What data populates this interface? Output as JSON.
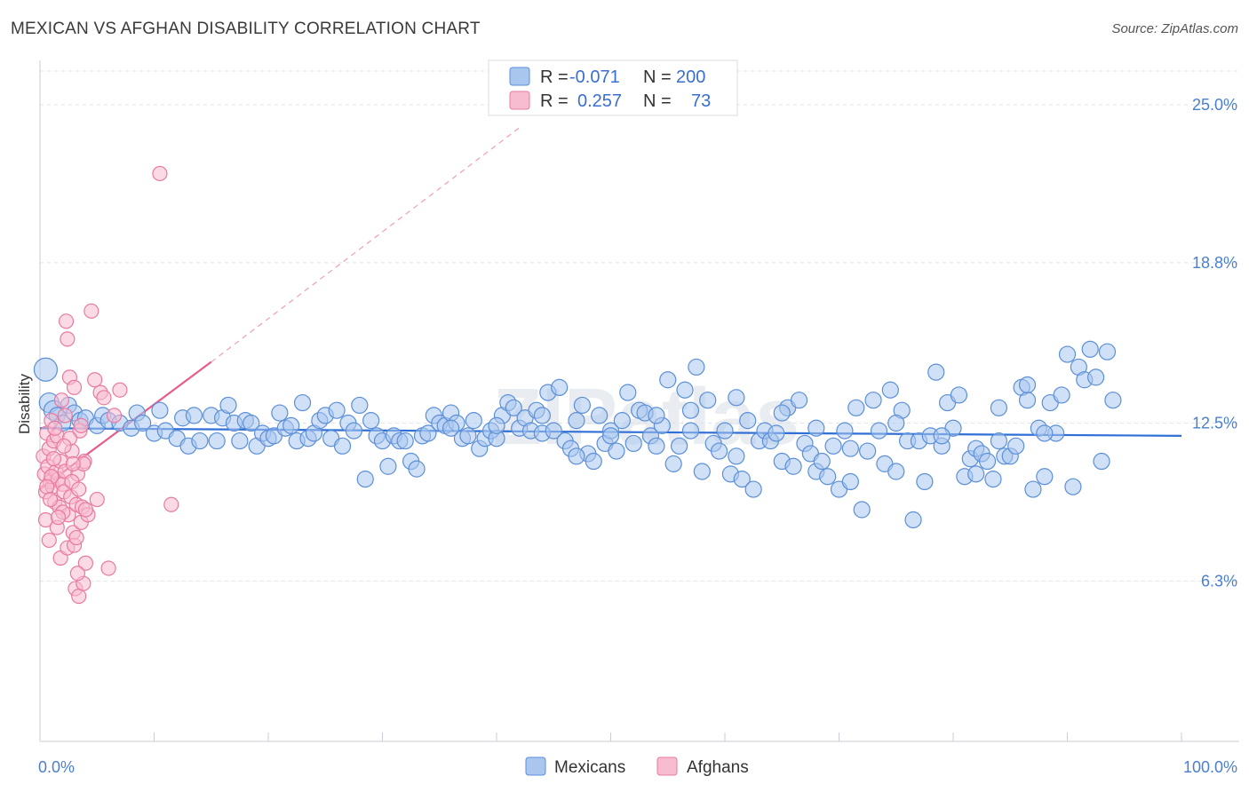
{
  "title": "MEXICAN VS AFGHAN DISABILITY CORRELATION CHART",
  "source": "Source: ZipAtlas.com",
  "watermark": "ZIPatlas",
  "colors": {
    "blue_fill": "#a9c6ef",
    "blue_stroke": "#5b8fd8",
    "blue_line": "#2f6fd6",
    "pink_fill": "#f7bcd0",
    "pink_stroke": "#e87aa0",
    "pink_line": "#e85c8c",
    "grid": "#dde3ec",
    "tick_text": "#4a7fd0"
  },
  "legend": {
    "rows": [
      {
        "r_label": "R =",
        "r_value": "-0.071",
        "n_label": "N =",
        "n_value": "200"
      },
      {
        "r_label": "R =",
        "r_value": "0.257",
        "n_label": "N =",
        "n_value": "73"
      }
    ]
  },
  "chart_data": {
    "type": "scatter",
    "xlabel": "",
    "ylabel": "Disability",
    "xlim": [
      0,
      100
    ],
    "ylim": [
      0,
      26.5
    ],
    "x_tick_labels": [
      "0.0%",
      "100.0%"
    ],
    "y_ticks": [
      6.3,
      12.5,
      18.8,
      25.0
    ],
    "y_tick_labels": [
      "6.3%",
      "12.5%",
      "18.8%",
      "25.0%"
    ],
    "grid": true,
    "legend_position": "top-center",
    "series": [
      {
        "name": "Mexicans",
        "trend": {
          "x0": 0,
          "y0": 12.3,
          "x1": 100,
          "y1": 12.0
        },
        "points": [
          [
            0.5,
            14.6
          ],
          [
            0.8,
            13.3
          ],
          [
            1.2,
            13.0
          ],
          [
            1.5,
            12.8
          ],
          [
            2.0,
            12.5
          ],
          [
            2.5,
            13.2
          ],
          [
            3.0,
            12.9
          ],
          [
            3.5,
            12.6
          ],
          [
            4.0,
            12.7
          ],
          [
            5.0,
            12.4
          ],
          [
            5.5,
            12.8
          ],
          [
            6.0,
            12.6
          ],
          [
            7.0,
            12.5
          ],
          [
            8.0,
            12.3
          ],
          [
            8.5,
            12.9
          ],
          [
            9.0,
            12.5
          ],
          [
            10.0,
            12.1
          ],
          [
            10.5,
            13.0
          ],
          [
            11.0,
            12.2
          ],
          [
            12.0,
            11.9
          ],
          [
            12.5,
            12.7
          ],
          [
            13.0,
            11.6
          ],
          [
            13.5,
            12.8
          ],
          [
            14.0,
            11.8
          ],
          [
            15.0,
            12.8
          ],
          [
            15.5,
            11.8
          ],
          [
            16.0,
            12.7
          ],
          [
            16.5,
            13.2
          ],
          [
            17.0,
            12.5
          ],
          [
            17.5,
            11.8
          ],
          [
            18.0,
            12.6
          ],
          [
            18.5,
            12.5
          ],
          [
            19.0,
            11.6
          ],
          [
            19.5,
            12.1
          ],
          [
            20.0,
            11.9
          ],
          [
            20.5,
            12.0
          ],
          [
            21.0,
            12.9
          ],
          [
            21.5,
            12.3
          ],
          [
            22.0,
            12.4
          ],
          [
            22.5,
            11.8
          ],
          [
            23.0,
            13.3
          ],
          [
            23.5,
            11.9
          ],
          [
            24.0,
            12.1
          ],
          [
            24.5,
            12.6
          ],
          [
            25.0,
            12.8
          ],
          [
            25.5,
            11.9
          ],
          [
            26.0,
            13.0
          ],
          [
            26.5,
            11.6
          ],
          [
            27.0,
            12.5
          ],
          [
            27.5,
            12.2
          ],
          [
            28.0,
            13.2
          ],
          [
            28.5,
            10.3
          ],
          [
            29.0,
            12.6
          ],
          [
            29.5,
            12.0
          ],
          [
            30.0,
            11.8
          ],
          [
            30.5,
            10.8
          ],
          [
            31.0,
            12.0
          ],
          [
            31.5,
            11.8
          ],
          [
            32.0,
            11.8
          ],
          [
            32.5,
            11.0
          ],
          [
            33.0,
            10.7
          ],
          [
            33.5,
            12.0
          ],
          [
            34.0,
            12.1
          ],
          [
            34.5,
            12.8
          ],
          [
            35.0,
            12.5
          ],
          [
            35.5,
            12.4
          ],
          [
            36.0,
            12.9
          ],
          [
            36.5,
            12.5
          ],
          [
            37.0,
            11.9
          ],
          [
            37.5,
            12.0
          ],
          [
            38.0,
            12.6
          ],
          [
            38.5,
            11.5
          ],
          [
            39.0,
            11.9
          ],
          [
            39.5,
            12.2
          ],
          [
            40.0,
            11.9
          ],
          [
            40.5,
            12.8
          ],
          [
            41.0,
            13.3
          ],
          [
            41.5,
            13.1
          ],
          [
            42.0,
            12.3
          ],
          [
            42.5,
            12.7
          ],
          [
            43.0,
            12.2
          ],
          [
            43.5,
            13.0
          ],
          [
            44.0,
            12.1
          ],
          [
            44.5,
            13.7
          ],
          [
            45.0,
            12.2
          ],
          [
            45.5,
            13.9
          ],
          [
            46.0,
            11.8
          ],
          [
            46.5,
            11.5
          ],
          [
            47.0,
            12.6
          ],
          [
            47.5,
            13.2
          ],
          [
            48.0,
            11.3
          ],
          [
            48.5,
            11.0
          ],
          [
            49.0,
            12.8
          ],
          [
            49.5,
            11.7
          ],
          [
            50.0,
            12.2
          ],
          [
            50.5,
            11.4
          ],
          [
            51.0,
            12.6
          ],
          [
            51.5,
            13.7
          ],
          [
            52.0,
            11.7
          ],
          [
            52.5,
            13.0
          ],
          [
            53.0,
            12.9
          ],
          [
            53.5,
            12.0
          ],
          [
            54.0,
            11.6
          ],
          [
            54.5,
            12.4
          ],
          [
            55.0,
            14.2
          ],
          [
            55.5,
            10.9
          ],
          [
            56.0,
            11.6
          ],
          [
            56.5,
            13.8
          ],
          [
            57.0,
            12.2
          ],
          [
            57.5,
            14.7
          ],
          [
            58.0,
            10.6
          ],
          [
            58.5,
            13.4
          ],
          [
            59.0,
            11.7
          ],
          [
            59.5,
            11.4
          ],
          [
            60.0,
            12.2
          ],
          [
            60.5,
            10.5
          ],
          [
            61.0,
            13.5
          ],
          [
            61.5,
            10.3
          ],
          [
            62.0,
            12.6
          ],
          [
            62.5,
            9.9
          ],
          [
            63.0,
            11.8
          ],
          [
            63.5,
            12.2
          ],
          [
            64.0,
            11.8
          ],
          [
            64.5,
            12.1
          ],
          [
            65.0,
            11.0
          ],
          [
            65.5,
            13.1
          ],
          [
            66.0,
            10.8
          ],
          [
            66.5,
            13.4
          ],
          [
            67.0,
            11.7
          ],
          [
            67.5,
            11.3
          ],
          [
            68.0,
            10.6
          ],
          [
            68.5,
            11.0
          ],
          [
            69.0,
            10.4
          ],
          [
            69.5,
            11.6
          ],
          [
            70.0,
            9.9
          ],
          [
            70.5,
            12.2
          ],
          [
            71.0,
            10.2
          ],
          [
            71.5,
            13.1
          ],
          [
            72.0,
            9.1
          ],
          [
            72.5,
            11.4
          ],
          [
            73.0,
            13.4
          ],
          [
            73.5,
            12.2
          ],
          [
            74.0,
            10.9
          ],
          [
            74.5,
            13.8
          ],
          [
            75.0,
            10.6
          ],
          [
            75.5,
            13.0
          ],
          [
            76.0,
            11.8
          ],
          [
            76.5,
            8.7
          ],
          [
            77.0,
            11.8
          ],
          [
            77.5,
            10.2
          ],
          [
            78.0,
            12.0
          ],
          [
            78.5,
            14.5
          ],
          [
            79.0,
            11.6
          ],
          [
            79.5,
            13.3
          ],
          [
            80.0,
            12.3
          ],
          [
            80.5,
            13.6
          ],
          [
            81.0,
            10.4
          ],
          [
            81.5,
            11.1
          ],
          [
            82.0,
            11.5
          ],
          [
            82.5,
            11.3
          ],
          [
            83.0,
            11.0
          ],
          [
            83.5,
            10.3
          ],
          [
            84.0,
            13.1
          ],
          [
            84.5,
            11.2
          ],
          [
            85.0,
            11.2
          ],
          [
            85.5,
            11.6
          ],
          [
            86.0,
            13.9
          ],
          [
            86.5,
            13.4
          ],
          [
            87.0,
            9.9
          ],
          [
            87.5,
            12.3
          ],
          [
            88.0,
            10.4
          ],
          [
            88.5,
            13.3
          ],
          [
            89.0,
            12.1
          ],
          [
            89.5,
            13.6
          ],
          [
            90.0,
            15.2
          ],
          [
            90.5,
            10.0
          ],
          [
            91.0,
            14.7
          ],
          [
            91.5,
            14.2
          ],
          [
            92.0,
            15.4
          ],
          [
            92.5,
            14.3
          ],
          [
            93.0,
            11.0
          ],
          [
            93.5,
            15.3
          ],
          [
            94.0,
            13.4
          ],
          [
            88.0,
            12.1
          ],
          [
            86.5,
            14.0
          ],
          [
            84.0,
            11.8
          ],
          [
            82.0,
            10.5
          ],
          [
            79.0,
            12.0
          ],
          [
            75.0,
            12.5
          ],
          [
            71.0,
            11.5
          ],
          [
            68.0,
            12.3
          ],
          [
            65.0,
            12.9
          ],
          [
            61.0,
            11.2
          ],
          [
            57.0,
            13.0
          ],
          [
            54.0,
            12.8
          ],
          [
            50.0,
            12.0
          ],
          [
            47.0,
            11.2
          ],
          [
            44.0,
            12.8
          ],
          [
            40.0,
            12.4
          ],
          [
            36.0,
            12.3
          ]
        ]
      },
      {
        "name": "Afghans",
        "trend": {
          "x0": 0,
          "y0": 9.9,
          "x1": 15,
          "y1": 14.9
        },
        "trend_extension": {
          "x0": 15,
          "y0": 14.9,
          "x1": 42,
          "y1": 24.1
        },
        "points": [
          [
            0.3,
            11.2
          ],
          [
            0.4,
            10.5
          ],
          [
            0.5,
            9.8
          ],
          [
            0.6,
            12.1
          ],
          [
            0.7,
            10.8
          ],
          [
            0.8,
            11.5
          ],
          [
            0.9,
            10.2
          ],
          [
            1.0,
            12.6
          ],
          [
            1.1,
            10.0
          ],
          [
            1.2,
            11.8
          ],
          [
            1.3,
            9.4
          ],
          [
            1.4,
            10.6
          ],
          [
            1.5,
            12.0
          ],
          [
            1.6,
            10.3
          ],
          [
            1.7,
            9.2
          ],
          [
            1.8,
            11.0
          ],
          [
            1.9,
            13.4
          ],
          [
            2.0,
            10.1
          ],
          [
            2.1,
            9.8
          ],
          [
            2.2,
            12.8
          ],
          [
            2.3,
            16.5
          ],
          [
            2.4,
            15.8
          ],
          [
            2.5,
            8.9
          ],
          [
            2.6,
            14.3
          ],
          [
            2.7,
            9.6
          ],
          [
            2.8,
            11.4
          ],
          [
            2.9,
            8.2
          ],
          [
            3.0,
            13.9
          ],
          [
            3.1,
            6.0
          ],
          [
            3.2,
            9.3
          ],
          [
            3.3,
            10.5
          ],
          [
            3.4,
            5.7
          ],
          [
            3.5,
            12.2
          ],
          [
            3.6,
            8.6
          ],
          [
            3.7,
            9.2
          ],
          [
            3.8,
            6.2
          ],
          [
            3.9,
            11.0
          ],
          [
            4.0,
            7.0
          ],
          [
            4.2,
            8.9
          ],
          [
            4.5,
            16.9
          ],
          [
            4.8,
            14.2
          ],
          [
            5.0,
            9.5
          ],
          [
            5.3,
            13.7
          ],
          [
            5.6,
            13.5
          ],
          [
            6.0,
            6.8
          ],
          [
            6.5,
            12.8
          ],
          [
            7.0,
            13.8
          ],
          [
            10.5,
            22.3
          ],
          [
            11.5,
            9.3
          ],
          [
            0.5,
            8.7
          ],
          [
            0.8,
            7.9
          ],
          [
            1.0,
            10.4
          ],
          [
            1.2,
            11.1
          ],
          [
            1.5,
            8.4
          ],
          [
            1.8,
            7.2
          ],
          [
            2.0,
            9.0
          ],
          [
            2.2,
            10.6
          ],
          [
            2.4,
            7.6
          ],
          [
            2.6,
            11.9
          ],
          [
            2.8,
            10.2
          ],
          [
            3.0,
            7.7
          ],
          [
            3.2,
            8.0
          ],
          [
            3.4,
            9.9
          ],
          [
            3.6,
            12.4
          ],
          [
            3.8,
            10.9
          ],
          [
            4.0,
            9.1
          ],
          [
            0.6,
            10.0
          ],
          [
            1.3,
            12.3
          ],
          [
            2.1,
            11.6
          ],
          [
            0.9,
            9.5
          ],
          [
            1.6,
            8.8
          ],
          [
            2.9,
            10.9
          ],
          [
            3.3,
            6.6
          ]
        ]
      }
    ]
  }
}
